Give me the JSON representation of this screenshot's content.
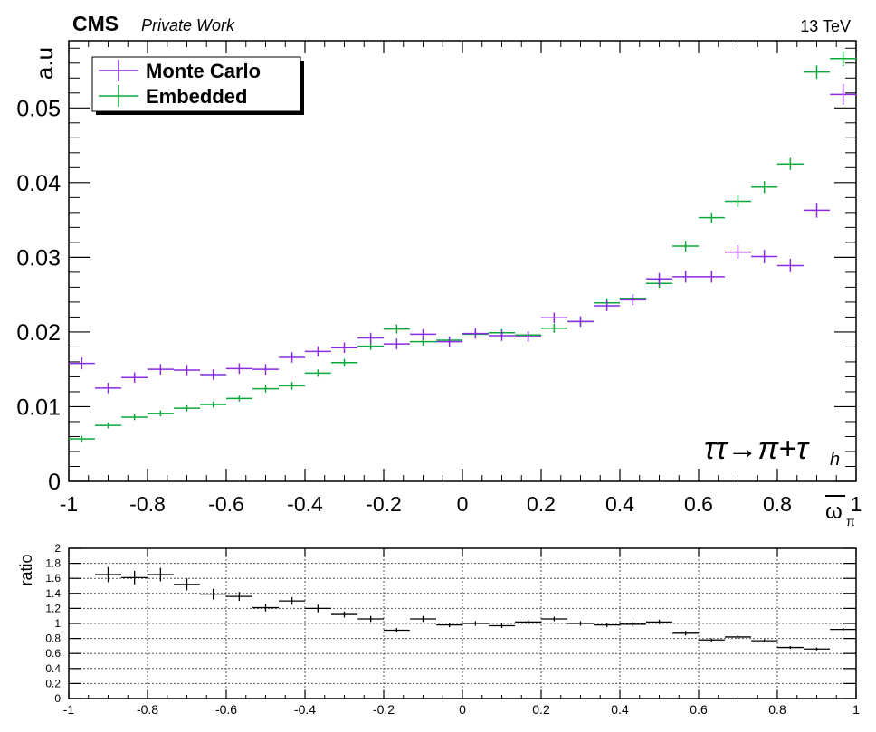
{
  "header": {
    "experiment": "CMS",
    "subtitle": "Private Work",
    "energy": "13 TeV"
  },
  "colors": {
    "monte_carlo": "#8a2be2",
    "embedded": "#0aa83a",
    "ratio": "#000000",
    "grid": "#555555"
  },
  "chart_data": [
    {
      "type": "scatter",
      "title": "",
      "xlabel": "ω̅π",
      "xlabel_main": "ω",
      "xlabel_sub": "π",
      "ylabel": "a.u",
      "xlim": [
        -1,
        1
      ],
      "ylim": [
        0,
        0.059
      ],
      "yticks": [
        0,
        0.01,
        0.02,
        0.03,
        0.04,
        0.05
      ],
      "ytick_labels": [
        "0",
        "0.01",
        "0.02",
        "0.03",
        "0.04",
        "0.05"
      ],
      "xticks": [
        -1,
        -0.8,
        -0.6,
        -0.4,
        -0.2,
        0,
        0.2,
        0.4,
        0.6,
        0.8,
        1
      ],
      "xtick_labels": [
        "-1",
        "-0.8",
        "-0.6",
        "-0.4",
        "-0.2",
        "0",
        "0.2",
        "0.4",
        "0.6",
        "0.8",
        "1"
      ],
      "bin_width": 0.0667,
      "annotation": "ττ→π+τh",
      "annotation_main": "ττ→π+τ",
      "annotation_sub": "h",
      "legend_position": "top-left",
      "x": [
        -0.967,
        -0.9,
        -0.833,
        -0.767,
        -0.7,
        -0.633,
        -0.567,
        -0.5,
        -0.433,
        -0.367,
        -0.3,
        -0.233,
        -0.167,
        -0.1,
        -0.033,
        0.033,
        0.1,
        0.167,
        0.233,
        0.3,
        0.367,
        0.433,
        0.5,
        0.567,
        0.633,
        0.7,
        0.767,
        0.833,
        0.9,
        0.967
      ],
      "series": [
        {
          "name": "Monte Carlo",
          "color": "#8a2be2",
          "values": [
            0.0158,
            0.0125,
            0.0139,
            0.015,
            0.0149,
            0.0143,
            0.0151,
            0.015,
            0.0166,
            0.0174,
            0.0179,
            0.0192,
            0.0184,
            0.0197,
            0.0187,
            0.0198,
            0.0195,
            0.0194,
            0.0219,
            0.0214,
            0.0235,
            0.0243,
            0.0271,
            0.0274,
            0.0274,
            0.0307,
            0.0301,
            0.0289,
            0.0363,
            0.0518
          ],
          "errors": [
            0.0008,
            0.0007,
            0.0007,
            0.0007,
            0.0007,
            0.0007,
            0.0007,
            0.0007,
            0.0007,
            0.0007,
            0.0007,
            0.0007,
            0.0007,
            0.0007,
            0.0007,
            0.0007,
            0.0007,
            0.0007,
            0.0007,
            0.0007,
            0.0007,
            0.0007,
            0.0008,
            0.0008,
            0.0008,
            0.0009,
            0.0009,
            0.0009,
            0.001,
            0.0014
          ]
        },
        {
          "name": "Embedded",
          "color": "#0aa83a",
          "values": [
            0.0057,
            0.0075,
            0.0086,
            0.0091,
            0.0098,
            0.0103,
            0.0111,
            0.0124,
            0.0128,
            0.0145,
            0.0159,
            0.0181,
            0.0204,
            0.0187,
            0.0189,
            0.0197,
            0.0199,
            0.0196,
            0.0205,
            0.0214,
            0.0239,
            0.0245,
            0.0265,
            0.0315,
            0.0353,
            0.0375,
            0.0394,
            0.0425,
            0.0548,
            0.0566
          ],
          "errors": [
            0.0004,
            0.0004,
            0.0004,
            0.0004,
            0.0004,
            0.0004,
            0.0004,
            0.0005,
            0.0005,
            0.0005,
            0.0005,
            0.0005,
            0.0006,
            0.0005,
            0.0005,
            0.0005,
            0.0005,
            0.0005,
            0.0006,
            0.0006,
            0.0006,
            0.0006,
            0.0006,
            0.0007,
            0.0007,
            0.0008,
            0.0008,
            0.0008,
            0.0009,
            0.001
          ]
        }
      ]
    },
    {
      "type": "scatter",
      "title": "",
      "xlabel": "",
      "ylabel": "ratio",
      "xlim": [
        -1,
        1
      ],
      "ylim": [
        0,
        2
      ],
      "yticks": [
        0,
        0.2,
        0.4,
        0.6,
        0.8,
        1,
        1.2,
        1.4,
        1.6,
        1.8,
        2
      ],
      "ytick_labels": [
        "0",
        "0.2",
        "0.4",
        "0.6",
        "0.8",
        "1",
        "1.2",
        "1.4",
        "1.6",
        "1.8",
        "2"
      ],
      "xticks": [
        -1,
        -0.8,
        -0.6,
        -0.4,
        -0.2,
        0,
        0.2,
        0.4,
        0.6,
        0.8,
        1
      ],
      "xtick_labels": [
        "-1",
        "-0.8",
        "-0.6",
        "-0.4",
        "-0.2",
        "0",
        "0.2",
        "0.4",
        "0.6",
        "0.8",
        "1"
      ],
      "grid": true,
      "bin_width": 0.0667,
      "x": [
        -0.9,
        -0.833,
        -0.767,
        -0.7,
        -0.633,
        -0.567,
        -0.5,
        -0.433,
        -0.367,
        -0.3,
        -0.233,
        -0.167,
        -0.1,
        -0.033,
        0.033,
        0.1,
        0.167,
        0.233,
        0.3,
        0.367,
        0.433,
        0.5,
        0.567,
        0.633,
        0.7,
        0.767,
        0.833,
        0.9,
        0.967
      ],
      "series": [
        {
          "name": "ratio",
          "color": "#000000",
          "values": [
            1.65,
            1.61,
            1.65,
            1.52,
            1.39,
            1.36,
            1.21,
            1.3,
            1.2,
            1.12,
            1.06,
            0.91,
            1.06,
            0.98,
            1.0,
            0.97,
            1.02,
            1.06,
            1.0,
            0.98,
            0.99,
            1.02,
            0.87,
            0.78,
            0.82,
            0.77,
            0.68,
            0.66,
            0.92
          ],
          "errors": [
            0.1,
            0.09,
            0.09,
            0.08,
            0.07,
            0.06,
            0.05,
            0.05,
            0.05,
            0.04,
            0.04,
            0.03,
            0.04,
            0.03,
            0.03,
            0.03,
            0.03,
            0.03,
            0.03,
            0.03,
            0.03,
            0.03,
            0.03,
            0.02,
            0.02,
            0.02,
            0.02,
            0.02,
            0.02
          ]
        }
      ]
    }
  ]
}
